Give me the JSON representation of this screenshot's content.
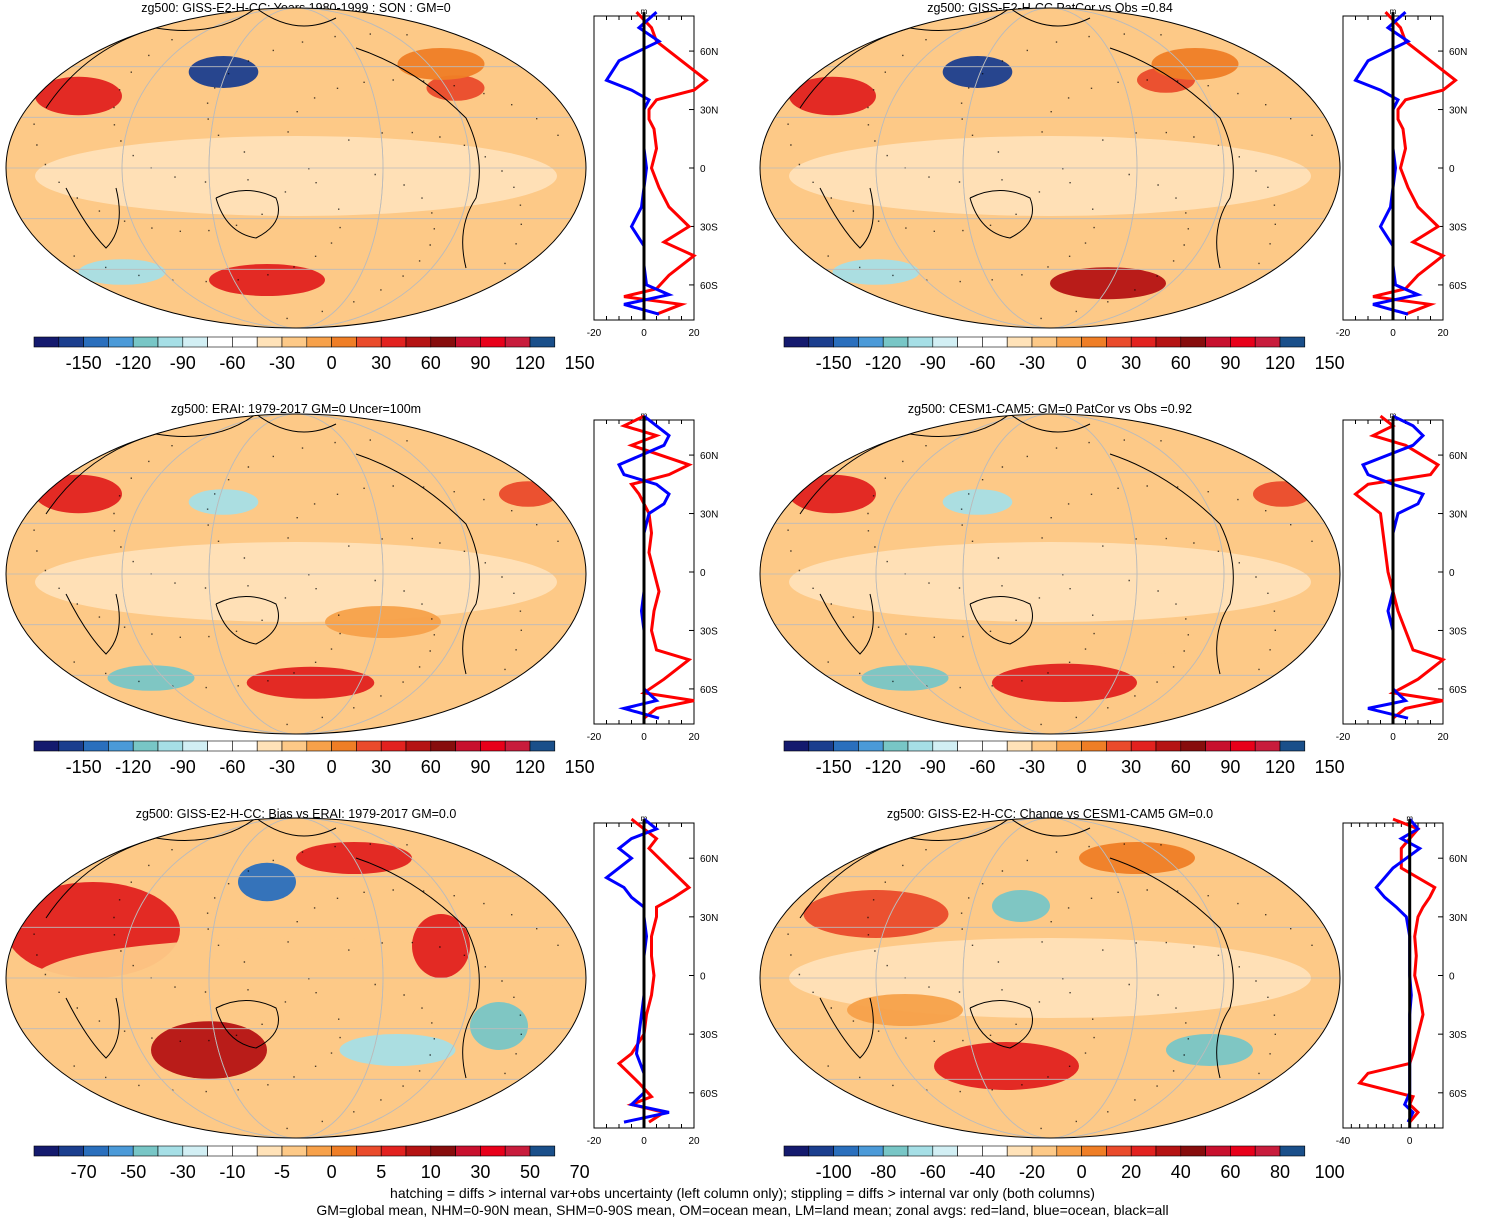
{
  "chart_data": [
    {
      "type": "heatmap",
      "title": "zg500: GISS-E2-H-CC: Years 1980-1999 : SON : GM=0",
      "colorbar": {
        "labels": [
          "-150",
          "-120",
          "-90",
          "-60",
          "-30",
          "0",
          "30",
          "60",
          "90",
          "120",
          "150"
        ]
      },
      "zonal": {
        "unit": "m",
        "xlim": [
          -20,
          20
        ],
        "xticks": [
          "-20",
          "0",
          "20"
        ],
        "lat_labels": [
          "60N",
          "30N",
          "0",
          "30S",
          "60S"
        ],
        "series": [
          {
            "name": "land",
            "color": "#ff0000",
            "lat": [
              80,
              72,
              65,
              55,
              45,
              40,
              35,
              30,
              25,
              20,
              10,
              0,
              -10,
              -20,
              -30,
              -38,
              -45,
              -55,
              -62,
              -66,
              -70,
              -75
            ],
            "values": [
              -3,
              3,
              5,
              15,
              25,
              20,
              5,
              2,
              2,
              4,
              5,
              3,
              6,
              10,
              18,
              8,
              20,
              10,
              5,
              -8,
              15,
              5
            ]
          },
          {
            "name": "ocean",
            "color": "#0000ff",
            "lat": [
              80,
              72,
              65,
              55,
              45,
              40,
              35,
              30,
              20,
              10,
              0,
              -10,
              -20,
              -30,
              -40,
              -50,
              -60,
              -65,
              -70,
              -75
            ],
            "values": [
              5,
              -2,
              6,
              -10,
              -15,
              -5,
              2,
              0,
              0,
              0,
              1,
              0,
              -1,
              -5,
              0,
              0,
              1,
              10,
              -8,
              6
            ]
          },
          {
            "name": "all",
            "color": "#000000",
            "lat": [
              80,
              60,
              30,
              0,
              -30,
              -60,
              -78
            ],
            "values": [
              0,
              0,
              0,
              0,
              0,
              0,
              0
            ]
          }
        ]
      },
      "zonal_dir": "forward"
    },
    {
      "type": "heatmap",
      "title": "zg500: GISS-E2-H-CC PatCor vs Obs =0.84",
      "colorbar": {
        "labels": [
          "-150",
          "-120",
          "-90",
          "-60",
          "-30",
          "0",
          "30",
          "60",
          "90",
          "120",
          "150"
        ]
      },
      "zonal": {
        "unit": "m",
        "xlim": [
          -20,
          20
        ],
        "xticks": [
          "-20",
          "0",
          "20"
        ],
        "lat_labels": [
          "60N",
          "30N",
          "0",
          "30S",
          "60S"
        ],
        "series": [
          {
            "name": "land",
            "color": "#ff0000",
            "lat": [
              80,
              72,
              65,
              55,
              45,
              40,
              35,
              30,
              25,
              20,
              10,
              0,
              -10,
              -20,
              -30,
              -38,
              -45,
              -55,
              -62,
              -66,
              -70,
              -75
            ],
            "values": [
              -3,
              3,
              5,
              15,
              25,
              20,
              5,
              2,
              2,
              4,
              5,
              3,
              6,
              10,
              18,
              8,
              20,
              10,
              5,
              -8,
              15,
              5
            ]
          },
          {
            "name": "ocean",
            "color": "#0000ff",
            "lat": [
              80,
              72,
              65,
              55,
              45,
              40,
              35,
              30,
              20,
              10,
              0,
              -10,
              -20,
              -30,
              -40,
              -50,
              -60,
              -65,
              -70,
              -75
            ],
            "values": [
              5,
              -2,
              6,
              -10,
              -15,
              -5,
              2,
              0,
              0,
              0,
              1,
              0,
              -1,
              -5,
              0,
              0,
              1,
              10,
              -8,
              6
            ]
          },
          {
            "name": "all",
            "color": "#000000",
            "lat": [
              80,
              60,
              30,
              0,
              -30,
              -60,
              -78
            ],
            "values": [
              0,
              0,
              0,
              0,
              0,
              0,
              0
            ]
          }
        ]
      }
    },
    {
      "type": "heatmap",
      "title": "zg500: ERAI: 1979-2017 GM=0 Uncer=100m",
      "colorbar": {
        "labels": [
          "-150",
          "-120",
          "-90",
          "-60",
          "-30",
          "0",
          "30",
          "60",
          "90",
          "120",
          "150"
        ]
      },
      "zonal": {
        "unit": "m",
        "xlim": [
          -20,
          20
        ],
        "xticks": [
          "-20",
          "0",
          "20"
        ],
        "lat_labels": [
          "60N",
          "30N",
          "0",
          "30S",
          "60S"
        ],
        "series": [
          {
            "name": "land",
            "color": "#ff0000",
            "lat": [
              80,
              75,
              70,
              65,
              55,
              50,
              45,
              40,
              35,
              30,
              20,
              10,
              0,
              -10,
              -20,
              -30,
              -40,
              -45,
              -55,
              -62,
              -66,
              -70,
              -75
            ],
            "values": [
              0,
              -8,
              5,
              -5,
              18,
              10,
              -5,
              -2,
              0,
              2,
              3,
              2,
              4,
              6,
              4,
              3,
              5,
              18,
              8,
              0,
              20,
              5,
              0
            ]
          },
          {
            "name": "ocean",
            "color": "#0000ff",
            "lat": [
              80,
              75,
              70,
              65,
              55,
              50,
              45,
              40,
              35,
              30,
              20,
              10,
              0,
              -10,
              -20,
              -30,
              -40,
              -50,
              -60,
              -66,
              -70,
              -75
            ],
            "values": [
              0,
              5,
              10,
              8,
              -10,
              -8,
              5,
              10,
              8,
              2,
              0,
              0,
              0,
              0,
              -1,
              0,
              0,
              0,
              0,
              5,
              -8,
              6
            ]
          },
          {
            "name": "all",
            "color": "#000000",
            "lat": [
              80,
              60,
              30,
              0,
              -30,
              -60,
              -78
            ],
            "values": [
              0,
              0,
              0,
              0,
              0,
              0,
              0
            ]
          }
        ]
      }
    },
    {
      "type": "heatmap",
      "title": "zg500: CESM1-CAM5: GM=0 PatCor vs Obs =0.92",
      "colorbar": {
        "labels": [
          "-150",
          "-120",
          "-90",
          "-60",
          "-30",
          "0",
          "30",
          "60",
          "90",
          "120",
          "150"
        ]
      },
      "zonal": {
        "unit": "m",
        "xlim": [
          -20,
          20
        ],
        "xticks": [
          "-20",
          "0",
          "20"
        ],
        "lat_labels": [
          "60N",
          "30N",
          "0",
          "30S",
          "60S"
        ],
        "series": [
          {
            "name": "land",
            "color": "#ff0000",
            "lat": [
              80,
              75,
              70,
              65,
              55,
              50,
              45,
              40,
              35,
              30,
              20,
              10,
              0,
              -10,
              -20,
              -30,
              -40,
              -45,
              -55,
              -62,
              -66,
              -70,
              -75
            ],
            "values": [
              -5,
              0,
              -8,
              5,
              18,
              15,
              -10,
              -15,
              -10,
              -5,
              -4,
              -3,
              -2,
              0,
              2,
              5,
              8,
              20,
              10,
              0,
              20,
              5,
              0
            ]
          },
          {
            "name": "ocean",
            "color": "#0000ff",
            "lat": [
              80,
              75,
              70,
              65,
              55,
              50,
              45,
              40,
              35,
              30,
              20,
              10,
              0,
              -10,
              -20,
              -30,
              -40,
              -50,
              -60,
              -66,
              -70,
              -75
            ],
            "values": [
              0,
              8,
              12,
              8,
              -12,
              -10,
              0,
              12,
              10,
              2,
              0,
              0,
              0,
              0,
              -2,
              0,
              0,
              0,
              0,
              5,
              -10,
              6
            ]
          },
          {
            "name": "all",
            "color": "#000000",
            "lat": [
              80,
              60,
              30,
              0,
              -30,
              -60,
              -78
            ],
            "values": [
              0,
              0,
              0,
              0,
              0,
              0,
              0
            ]
          }
        ]
      }
    },
    {
      "type": "heatmap",
      "title": "zg500: GISS-E2-H-CC: Bias vs ERAI: 1979-2017  GM=0.0",
      "colorbar": {
        "labels": [
          "-70",
          "-50",
          "-30",
          "-10",
          "-5",
          "0",
          "5",
          "10",
          "30",
          "50",
          "70"
        ]
      },
      "zonal": {
        "unit": "m",
        "xlim": [
          -20,
          20
        ],
        "xticks": [
          "-20",
          "0",
          "20"
        ],
        "lat_labels": [
          "60N",
          "30N",
          "0",
          "30S",
          "60S"
        ],
        "series": [
          {
            "name": "land",
            "color": "#ff0000",
            "lat": [
              80,
              75,
              70,
              65,
              55,
              45,
              40,
              35,
              30,
              20,
              10,
              0,
              -10,
              -20,
              -30,
              -40,
              -45,
              -55,
              -62,
              -66,
              -70,
              -75
            ],
            "values": [
              -5,
              0,
              5,
              2,
              10,
              18,
              12,
              5,
              5,
              3,
              3,
              4,
              3,
              1,
              0,
              -5,
              -10,
              -2,
              3,
              -5,
              8,
              2
            ]
          },
          {
            "name": "ocean",
            "color": "#0000ff",
            "lat": [
              80,
              75,
              70,
              65,
              60,
              50,
              45,
              40,
              35,
              30,
              20,
              10,
              0,
              -10,
              -20,
              -30,
              -40,
              -50,
              -60,
              -66,
              -70,
              -75
            ],
            "values": [
              0,
              5,
              -5,
              -10,
              -5,
              -15,
              -8,
              -5,
              0,
              0,
              1,
              0,
              0,
              0,
              -1,
              -2,
              -3,
              0,
              0,
              -5,
              10,
              -8
            ]
          },
          {
            "name": "all",
            "color": "#000000",
            "lat": [
              80,
              60,
              30,
              0,
              -30,
              -60,
              -78
            ],
            "values": [
              0,
              0,
              0,
              0,
              0,
              0,
              0
            ]
          }
        ]
      }
    },
    {
      "type": "heatmap",
      "title": "zg500: GISS-E2-H-CC: Change vs CESM1-CAM5 GM=0.0",
      "colorbar": {
        "labels": [
          "-100",
          "-80",
          "-60",
          "-40",
          "-20",
          "0",
          "20",
          "40",
          "60",
          "80",
          "100"
        ]
      },
      "zonal": {
        "unit": "m",
        "xlim": [
          -40,
          20
        ],
        "xticks": [
          "-40",
          "0"
        ],
        "lat_labels": [
          "60N",
          "30N",
          "0",
          "30S",
          "60S"
        ],
        "series": [
          {
            "name": "land",
            "color": "#ff0000",
            "lat": [
              80,
              75,
              70,
              65,
              55,
              45,
              40,
              35,
              30,
              20,
              10,
              0,
              -10,
              -20,
              -30,
              -40,
              -45,
              -50,
              -55,
              -62,
              -66,
              -70,
              -75
            ],
            "values": [
              -10,
              5,
              0,
              -5,
              -5,
              15,
              12,
              8,
              5,
              3,
              4,
              3,
              6,
              8,
              5,
              2,
              0,
              -25,
              -30,
              2,
              0,
              5,
              0
            ]
          },
          {
            "name": "ocean",
            "color": "#0000ff",
            "lat": [
              80,
              75,
              70,
              65,
              55,
              45,
              40,
              35,
              30,
              20,
              10,
              0,
              -10,
              -20,
              -30,
              -40,
              -50,
              -60,
              -66,
              -70,
              -75
            ],
            "values": [
              0,
              5,
              -5,
              6,
              -10,
              -20,
              -15,
              -8,
              -2,
              0,
              0,
              0,
              1,
              0,
              0,
              0,
              0,
              0,
              -3,
              2,
              -1
            ]
          },
          {
            "name": "all",
            "color": "#000000",
            "lat": [
              80,
              60,
              30,
              0,
              -30,
              -60,
              -78
            ],
            "values": [
              0,
              0,
              0,
              0,
              0,
              0,
              0
            ]
          }
        ]
      }
    }
  ],
  "footer": {
    "line1": "hatching = diffs > internal var+obs uncertainty (left column only); stippling = diffs > internal var only (both columns)",
    "line2": "GM=global mean, NHM=0-90N mean, SHM=0-90S mean, OM=ocean mean, LM=land mean; zonal avgs: red=land, blue=ocean, black=all"
  },
  "colors": {
    "scale": [
      "#141a6e",
      "#1b3e8e",
      "#2a6fbd",
      "#4b9ad8",
      "#78c6c6",
      "#a6dfe6",
      "#d2eff4",
      "#ffffff",
      "#ffe2b8",
      "#fdc987",
      "#f7a14a",
      "#ef7e26",
      "#ea4b2b",
      "#e2221f",
      "#b51313",
      "#870d0d",
      "#c8102e",
      "#e8001a",
      "#c81c3c",
      "#1a4f8a"
    ]
  }
}
